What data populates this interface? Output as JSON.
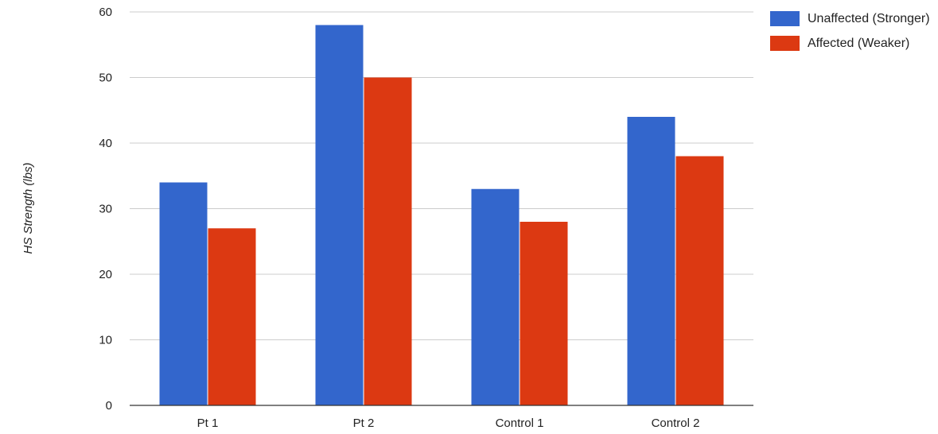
{
  "chart_data": {
    "type": "bar",
    "title": "",
    "xlabel": "",
    "ylabel": "HS Strength (lbs)",
    "categories": [
      "Pt 1",
      "Pt 2",
      "Control 1",
      "Control 2"
    ],
    "series": [
      {
        "name": "Unaffected (Stronger)",
        "color": "#3366cc",
        "values": [
          34,
          58,
          33,
          44
        ]
      },
      {
        "name": "Affected (Weaker)",
        "color": "#dc3912",
        "values": [
          27,
          50,
          28,
          38
        ]
      }
    ],
    "ylim": [
      0,
      60
    ],
    "yticks": [
      0,
      10,
      20,
      30,
      40,
      50,
      60
    ],
    "grid": true,
    "legend_position": "right"
  }
}
